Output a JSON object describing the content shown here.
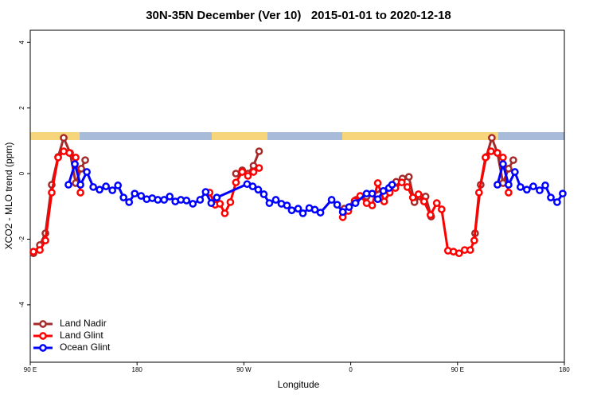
{
  "chart_data": {
    "type": "line",
    "title": "30N-35N December (Ver 10)   2015-01-01 to 2020-12-18",
    "xlabel": "Longitude",
    "ylabel": "XCO2 - MLO trend (ppm)",
    "xlim": [
      90,
      540
    ],
    "ylim": [
      -5.75,
      4.37
    ],
    "xticks": [
      {
        "value": 90,
        "label": "90 E"
      },
      180,
      {
        "value": 270,
        "label": "90 W"
      },
      {
        "value": 360,
        "label": "0"
      },
      {
        "value": 450,
        "label": "90 E"
      },
      {
        "value": 540,
        "label": "180"
      }
    ],
    "yticks": [
      -4,
      -2,
      0,
      2,
      4
    ],
    "legend": "bottom-left",
    "series": [
      {
        "name": "Land Nadir",
        "color": "#a52a2a",
        "x": [
          92.7,
          98.1,
          102.8,
          108.1,
          113.5,
          118.2,
          123.6,
          128.3,
          133.0,
          136.3,
          null,
          263.3,
          268.6,
          273.4,
          278.1,
          282.8,
          null,
          354.6,
          364.7,
          373.4,
          393.6,
          398.3,
          403.6,
          409.0,
          413.7,
          418.4,
          423.1,
          427.8,
          null,
          464.8,
          469.5,
          474.2,
          478.9,
          483.6,
          488.3,
          493.0,
          497.0
        ],
        "values": [
          -2.43,
          -2.18,
          -1.82,
          -0.34,
          0.51,
          1.09,
          0.63,
          -0.29,
          0.15,
          0.41,
          null,
          0.0,
          0.1,
          0.0,
          0.24,
          0.68,
          null,
          -1.07,
          -0.8,
          -0.7,
          -0.4,
          -0.25,
          -0.15,
          -0.1,
          -0.87,
          -0.7,
          -0.7,
          -1.31,
          null,
          -1.82,
          -0.34,
          0.51,
          1.09,
          0.63,
          -0.29,
          0.15,
          0.41
        ]
      },
      {
        "name": "Land Glint",
        "color": "#ff0000",
        "x": [
          92.7,
          98.1,
          102.8,
          108.1,
          113.5,
          118.2,
          122.9,
          128.3,
          132.3,
          null,
          241.1,
          245.8,
          249.8,
          253.9,
          258.6,
          263.3,
          268.6,
          273.4,
          278.1,
          282.8,
          null,
          353.3,
          358.0,
          363.3,
          368.0,
          373.4,
          378.1,
          382.8,
          388.2,
          392.9,
          397.6,
          403.0,
          407.7,
          412.4,
          417.1,
          421.8,
          427.2,
          432.5,
          436.6,
          441.9,
          446.6,
          451.3,
          456.0,
          460.7,
          464.1,
          468.1,
          473.5,
          478.2,
          483.6,
          488.3,
          493.0
        ],
        "values": [
          -2.38,
          -2.33,
          -2.04,
          -0.58,
          0.49,
          0.68,
          0.63,
          0.49,
          -0.58,
          null,
          -0.58,
          -0.95,
          -0.92,
          -1.21,
          -0.87,
          -0.27,
          0.05,
          -0.07,
          0.05,
          0.17,
          null,
          -1.33,
          -1.14,
          -0.83,
          -0.68,
          -0.9,
          -0.97,
          -0.29,
          -0.85,
          -0.58,
          -0.44,
          -0.27,
          -0.41,
          -0.73,
          -0.63,
          -0.85,
          -1.26,
          -0.9,
          -1.09,
          -2.35,
          -2.38,
          -2.43,
          -2.33,
          -2.33,
          -2.04,
          -0.58,
          0.49,
          0.68,
          0.63,
          0.49,
          -0.58
        ]
      },
      {
        "name": "Ocean Glint",
        "color": "#0000ff",
        "x": [
          122.2,
          127.6,
          132.3,
          137.7,
          143.1,
          148.4,
          153.8,
          159.2,
          163.9,
          168.6,
          173.3,
          178.0,
          183.4,
          188.1,
          192.8,
          197.5,
          202.8,
          207.5,
          212.2,
          216.9,
          221.6,
          227.0,
          233.1,
          237.8,
          242.5,
          247.2,
          272.7,
          277.4,
          282.1,
          286.8,
          291.5,
          296.9,
          301.6,
          306.3,
          310.3,
          315.7,
          319.7,
          325.1,
          329.8,
          334.5,
          343.9,
          348.6,
          353.3,
          358.6,
          364.0,
          373.4,
          378.1,
          382.8,
          387.5,
          392.2,
          394.9,
          null,
          483.6,
          488.3,
          493.0,
          498.3,
          503.0,
          508.4,
          513.8,
          519.2,
          523.9,
          528.6,
          533.9,
          538.6
        ],
        "values": [
          -0.34,
          0.29,
          -0.34,
          0.05,
          -0.41,
          -0.49,
          -0.39,
          -0.51,
          -0.36,
          -0.73,
          -0.87,
          -0.61,
          -0.68,
          -0.78,
          -0.75,
          -0.8,
          -0.8,
          -0.7,
          -0.85,
          -0.8,
          -0.82,
          -0.92,
          -0.8,
          -0.56,
          -0.9,
          -0.73,
          -0.32,
          -0.39,
          -0.49,
          -0.63,
          -0.9,
          -0.8,
          -0.92,
          -0.97,
          -1.12,
          -1.07,
          -1.21,
          -1.05,
          -1.1,
          -1.19,
          -0.8,
          -0.95,
          -1.17,
          -1.02,
          -0.9,
          -0.61,
          -0.61,
          -0.78,
          -0.53,
          -0.44,
          -0.34,
          null,
          -0.34,
          0.29,
          -0.34,
          0.05,
          -0.41,
          -0.49,
          -0.39,
          -0.51,
          -0.36,
          -0.73,
          -0.87,
          -0.61
        ]
      }
    ]
  }
}
